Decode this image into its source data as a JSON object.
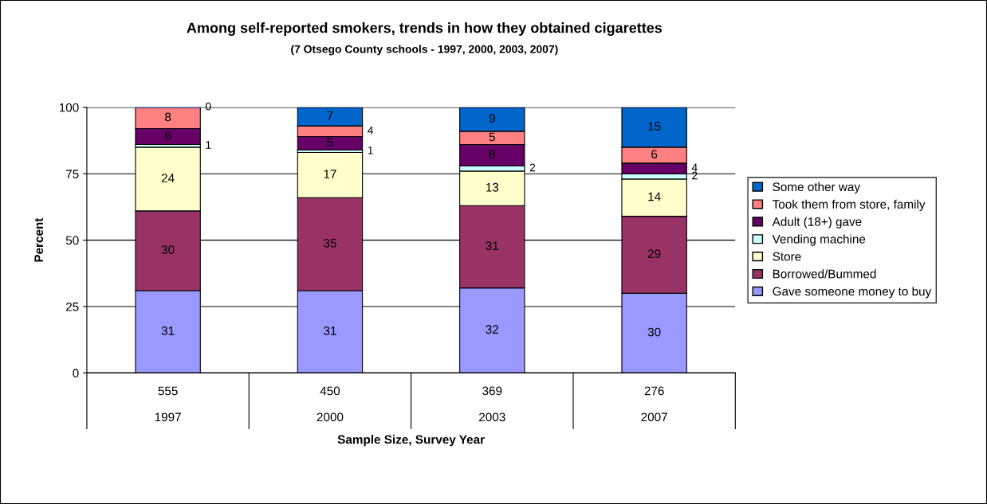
{
  "chart_data": {
    "type": "bar",
    "stacked": true,
    "title": "Among self-reported smokers, trends in how they obtained cigarettes",
    "subtitle": "(7 Otsego County schools - 1997, 2000, 2003, 2007)",
    "xlabel": "Sample Size, Survey Year",
    "ylabel": "Percent",
    "categories": [
      "555\n\n1997",
      "450\n\n2000",
      "369\n\n2003",
      "276\n\n2007"
    ],
    "series": [
      {
        "name": "Gave someone money to buy",
        "color": "#9999ff",
        "values": [
          31,
          31,
          32,
          30
        ]
      },
      {
        "name": "Borrowed/Bummed",
        "color": "#993366",
        "values": [
          30,
          35,
          31,
          29
        ]
      },
      {
        "name": "Store",
        "color": "#ffffcc",
        "values": [
          24,
          17,
          13,
          14
        ]
      },
      {
        "name": "Vending machine",
        "color": "#ccffff",
        "values": [
          1,
          1,
          2,
          2
        ]
      },
      {
        "name": "Adult (18+) gave",
        "color": "#660066",
        "values": [
          6,
          5,
          8,
          4
        ]
      },
      {
        "name": "Took them from store, family",
        "color": "#ff8080",
        "values": [
          8,
          4,
          5,
          6
        ]
      },
      {
        "name": "Some other way",
        "color": "#0066cc",
        "values": [
          0,
          7,
          9,
          15
        ]
      }
    ],
    "ylim": [
      0,
      100
    ],
    "yticks": [
      0,
      25,
      50,
      75,
      100
    ],
    "grid": "y",
    "legend": "right",
    "data_labels": true
  }
}
